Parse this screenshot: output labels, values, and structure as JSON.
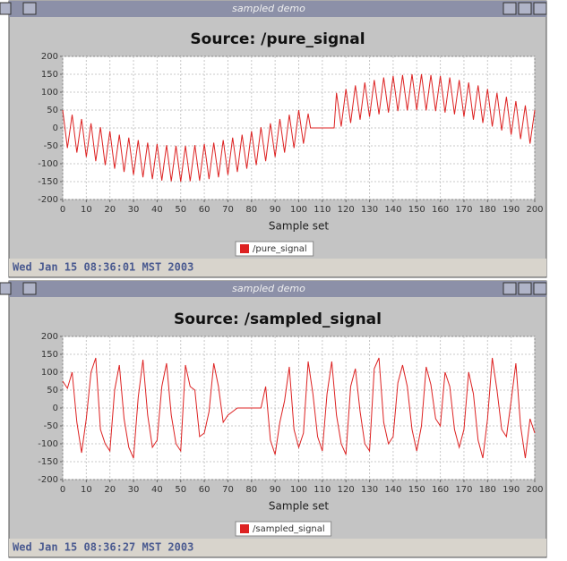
{
  "windows": [
    {
      "title": "sampled demo",
      "status": "Wed Jan 15 08:36:01 MST 2003"
    },
    {
      "title": "sampled demo",
      "status": "Wed Jan 15 08:36:27 MST 2003"
    }
  ],
  "chart_data": [
    {
      "type": "line",
      "title": "Source: /pure_signal",
      "x_label": "Sample set",
      "x": [
        0,
        2,
        4,
        6,
        8,
        10,
        12,
        14,
        16,
        18,
        20,
        22,
        24,
        26,
        28,
        30,
        32,
        34,
        36,
        38,
        40,
        42,
        44,
        46,
        48,
        50,
        52,
        54,
        56,
        58,
        60,
        62,
        64,
        66,
        68,
        70,
        72,
        74,
        76,
        78,
        80,
        82,
        84,
        86,
        88,
        90,
        92,
        94,
        96,
        98,
        100,
        102,
        104,
        105,
        115,
        116,
        118,
        120,
        122,
        124,
        126,
        128,
        130,
        132,
        134,
        136,
        138,
        140,
        142,
        144,
        146,
        148,
        150,
        152,
        154,
        156,
        158,
        160,
        162,
        164,
        166,
        168,
        170,
        172,
        174,
        176,
        178,
        180,
        182,
        184,
        186,
        188,
        190,
        192,
        194,
        196,
        198,
        200
      ],
      "series": [
        {
          "name": "/pure_signal",
          "color": "#dd2222",
          "values": [
            50,
            -56,
            37,
            -69,
            25,
            -81,
            13,
            -93,
            2,
            -104,
            -9,
            -114,
            -19,
            -123,
            -27,
            -131,
            -34,
            -138,
            -41,
            -143,
            -45,
            -147,
            -48,
            -149,
            -50,
            -150,
            -50,
            -149,
            -48,
            -147,
            -45,
            -143,
            -41,
            -138,
            -34,
            -131,
            -27,
            -123,
            -19,
            -114,
            -9,
            -104,
            2,
            -93,
            13,
            -81,
            25,
            -69,
            37,
            -56,
            50,
            -44,
            40,
            0,
            0,
            98,
            4,
            109,
            14,
            119,
            23,
            127,
            31,
            134,
            38,
            141,
            43,
            145,
            47,
            148,
            49,
            150,
            50,
            150,
            49,
            148,
            47,
            145,
            43,
            141,
            38,
            134,
            31,
            127,
            23,
            119,
            14,
            109,
            4,
            98,
            -7,
            87,
            -19,
            75,
            -31,
            63,
            -44,
            50
          ]
        }
      ],
      "xlim": [
        0,
        200
      ],
      "xticks": [
        0,
        10,
        20,
        30,
        40,
        50,
        60,
        70,
        80,
        90,
        100,
        110,
        120,
        130,
        140,
        150,
        160,
        170,
        180,
        190,
        200
      ],
      "ylim": [
        -200,
        200
      ],
      "yticks": [
        -200,
        -150,
        -100,
        -50,
        0,
        50,
        100,
        150,
        200
      ],
      "grid": true
    },
    {
      "type": "line",
      "title": "Source: /sampled_signal",
      "x_label": "Sample set",
      "x": [
        0,
        2,
        4,
        6,
        8,
        10,
        12,
        14,
        16,
        18,
        20,
        22,
        24,
        26,
        28,
        30,
        32,
        34,
        36,
        38,
        40,
        42,
        44,
        46,
        48,
        50,
        52,
        54,
        56,
        58,
        60,
        62,
        64,
        66,
        68,
        70,
        72,
        74,
        76,
        78,
        80,
        82,
        84,
        86,
        88,
        90,
        92,
        94,
        96,
        98,
        100,
        102,
        104,
        106,
        108,
        110,
        112,
        114,
        116,
        118,
        120,
        122,
        124,
        126,
        128,
        130,
        132,
        134,
        136,
        138,
        140,
        142,
        144,
        146,
        148,
        150,
        152,
        154,
        156,
        158,
        160,
        162,
        164,
        166,
        168,
        170,
        172,
        174,
        176,
        178,
        180,
        182,
        184,
        186,
        188,
        190,
        192,
        194,
        196,
        198,
        200
      ],
      "series": [
        {
          "name": "/sampled_signal",
          "color": "#dd2222",
          "values": [
            75,
            55,
            100,
            -40,
            -125,
            -30,
            100,
            140,
            -60,
            -100,
            -120,
            50,
            120,
            -30,
            -110,
            -140,
            30,
            135,
            -20,
            -110,
            -90,
            60,
            125,
            -20,
            -100,
            -120,
            120,
            60,
            50,
            -80,
            -70,
            -10,
            125,
            60,
            -40,
            -20,
            -10,
            0,
            0,
            0,
            0,
            0,
            0,
            60,
            -90,
            -130,
            -40,
            20,
            115,
            -60,
            -110,
            -70,
            130,
            40,
            -80,
            -120,
            40,
            130,
            -20,
            -100,
            -130,
            60,
            110,
            -10,
            -100,
            -120,
            110,
            140,
            -40,
            -100,
            -80,
            70,
            120,
            60,
            -60,
            -120,
            -50,
            115,
            65,
            -30,
            -50,
            100,
            60,
            -60,
            -110,
            -60,
            100,
            40,
            -90,
            -140,
            -30,
            140,
            50,
            -60,
            -80,
            20,
            125,
            -50,
            -140,
            -30,
            -70
          ]
        }
      ],
      "xlim": [
        0,
        200
      ],
      "xticks": [
        0,
        10,
        20,
        30,
        40,
        50,
        60,
        70,
        80,
        90,
        100,
        110,
        120,
        130,
        140,
        150,
        160,
        170,
        180,
        190,
        200
      ],
      "ylim": [
        -200,
        200
      ],
      "yticks": [
        -200,
        -150,
        -100,
        -50,
        0,
        50,
        100,
        150,
        200
      ],
      "grid": true
    }
  ]
}
